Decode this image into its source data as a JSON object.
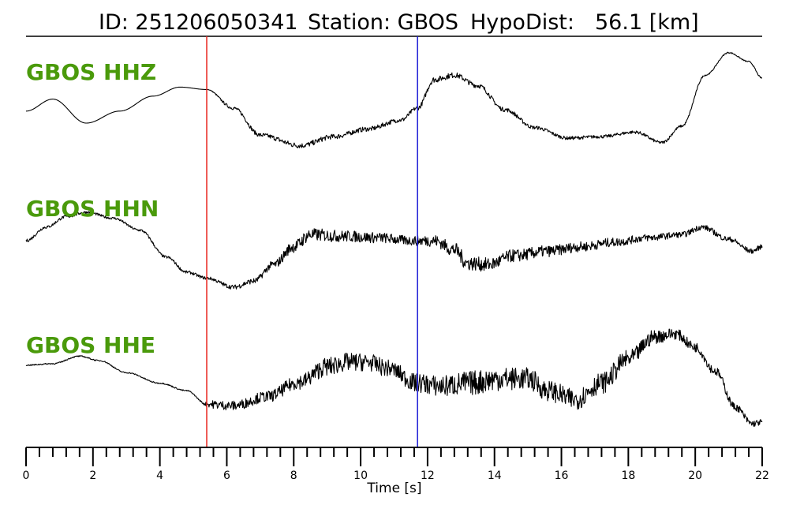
{
  "header": {
    "id_text": "ID: 251206050341",
    "station_text": "Station: GBOS",
    "hypodist_text": "HypoDist:",
    "hypodist_value": "56.1 [km]"
  },
  "colors": {
    "label": "#4a9a0b",
    "trace": "#000000",
    "p_pick": "#e8261f",
    "s_pick": "#1a1ad6"
  },
  "chart_data": {
    "type": "line",
    "xlabel": "Time [s]",
    "xlim": [
      0,
      22
    ],
    "x_ticks": [
      0,
      2,
      4,
      6,
      8,
      10,
      12,
      14,
      16,
      18,
      20,
      22
    ],
    "x_tick_labels": [
      "0",
      "2",
      "4",
      "6",
      "8",
      "10",
      "12",
      "14",
      "16",
      "18",
      "20",
      "22"
    ],
    "minor_tick_step": 0.4,
    "picks": [
      {
        "phase": "P",
        "time": 5.4,
        "color": "#e8261f"
      },
      {
        "phase": "S",
        "time": 11.7,
        "color": "#1a1ad6"
      }
    ],
    "series": [
      {
        "name": "GBOS HHZ",
        "noise": [
          [
            0,
            0.0
          ],
          [
            5.4,
            0.0
          ],
          [
            6.0,
            0.05
          ],
          [
            8.0,
            0.09
          ],
          [
            11.7,
            0.07
          ],
          [
            12.2,
            0.1
          ],
          [
            15.0,
            0.06
          ],
          [
            19.0,
            0.05
          ],
          [
            20.5,
            0.02
          ],
          [
            22,
            0.02
          ]
        ],
        "points": [
          [
            0,
            -0.6
          ],
          [
            0.8,
            -0.2
          ],
          [
            1.8,
            -1.0
          ],
          [
            2.8,
            -0.6
          ],
          [
            3.8,
            -0.1
          ],
          [
            4.6,
            0.2
          ],
          [
            5.4,
            0.12
          ],
          [
            6.2,
            -0.5
          ],
          [
            7.0,
            -1.4
          ],
          [
            8.2,
            -1.75
          ],
          [
            9.2,
            -1.45
          ],
          [
            10.2,
            -1.2
          ],
          [
            11.2,
            -0.9
          ],
          [
            11.7,
            -0.5
          ],
          [
            12.2,
            0.45
          ],
          [
            12.8,
            0.6
          ],
          [
            13.5,
            0.25
          ],
          [
            14.3,
            -0.55
          ],
          [
            15.2,
            -1.15
          ],
          [
            16.2,
            -1.5
          ],
          [
            17.2,
            -1.45
          ],
          [
            18.2,
            -1.3
          ],
          [
            19.0,
            -1.65
          ],
          [
            19.6,
            -1.1
          ],
          [
            20.3,
            0.6
          ],
          [
            21.0,
            1.35
          ],
          [
            21.6,
            1.05
          ],
          [
            22,
            0.5
          ]
        ]
      },
      {
        "name": "GBOS HHN",
        "noise": [
          [
            0,
            0.05
          ],
          [
            3.0,
            0.04
          ],
          [
            5.4,
            0.05
          ],
          [
            7.0,
            0.1
          ],
          [
            8.2,
            0.22
          ],
          [
            11.5,
            0.16
          ],
          [
            13.0,
            0.25
          ],
          [
            17.0,
            0.16
          ],
          [
            19.5,
            0.1
          ],
          [
            22,
            0.08
          ]
        ],
        "points": [
          [
            0,
            0.0
          ],
          [
            0.6,
            0.45
          ],
          [
            1.2,
            0.8
          ],
          [
            1.8,
            0.95
          ],
          [
            2.6,
            0.75
          ],
          [
            3.4,
            0.35
          ],
          [
            4.2,
            -0.55
          ],
          [
            4.8,
            -1.05
          ],
          [
            5.4,
            -1.25
          ],
          [
            6.2,
            -1.55
          ],
          [
            6.8,
            -1.35
          ],
          [
            7.4,
            -0.8
          ],
          [
            8.0,
            -0.2
          ],
          [
            8.5,
            0.2
          ],
          [
            9.5,
            0.15
          ],
          [
            10.5,
            0.1
          ],
          [
            11.5,
            0.0
          ],
          [
            12.2,
            0.0
          ],
          [
            12.8,
            -0.3
          ],
          [
            13.2,
            -0.75
          ],
          [
            13.8,
            -0.8
          ],
          [
            14.6,
            -0.5
          ],
          [
            15.6,
            -0.35
          ],
          [
            16.6,
            -0.2
          ],
          [
            17.6,
            -0.05
          ],
          [
            18.6,
            0.1
          ],
          [
            19.6,
            0.2
          ],
          [
            20.2,
            0.45
          ],
          [
            21.0,
            0.05
          ],
          [
            21.7,
            -0.35
          ],
          [
            22,
            -0.2
          ]
        ]
      },
      {
        "name": "GBOS HHE",
        "noise": [
          [
            0,
            0.02
          ],
          [
            5.2,
            0.02
          ],
          [
            5.6,
            0.14
          ],
          [
            7.5,
            0.2
          ],
          [
            9.0,
            0.32
          ],
          [
            11.0,
            0.28
          ],
          [
            13.5,
            0.42
          ],
          [
            15.5,
            0.35
          ],
          [
            17.5,
            0.35
          ],
          [
            19.5,
            0.18
          ],
          [
            22,
            0.1
          ]
        ],
        "points": [
          [
            0,
            0.4
          ],
          [
            0.8,
            0.45
          ],
          [
            1.6,
            0.7
          ],
          [
            2.2,
            0.55
          ],
          [
            3.0,
            0.15
          ],
          [
            4.0,
            -0.2
          ],
          [
            4.8,
            -0.45
          ],
          [
            5.4,
            -0.9
          ],
          [
            6.2,
            -0.95
          ],
          [
            7.2,
            -0.65
          ],
          [
            8.2,
            -0.15
          ],
          [
            9.0,
            0.35
          ],
          [
            9.6,
            0.5
          ],
          [
            10.2,
            0.5
          ],
          [
            10.8,
            0.3
          ],
          [
            11.7,
            -0.2
          ],
          [
            12.4,
            -0.3
          ],
          [
            13.2,
            -0.2
          ],
          [
            14.2,
            -0.05
          ],
          [
            15.0,
            -0.05
          ],
          [
            15.6,
            -0.45
          ],
          [
            16.4,
            -0.75
          ],
          [
            17.2,
            -0.2
          ],
          [
            18.0,
            0.6
          ],
          [
            18.8,
            1.35
          ],
          [
            19.4,
            1.45
          ],
          [
            20.0,
            1.0
          ],
          [
            20.6,
            0.2
          ],
          [
            21.2,
            -1.0
          ],
          [
            21.7,
            -1.55
          ],
          [
            22,
            -1.5
          ]
        ]
      }
    ]
  }
}
